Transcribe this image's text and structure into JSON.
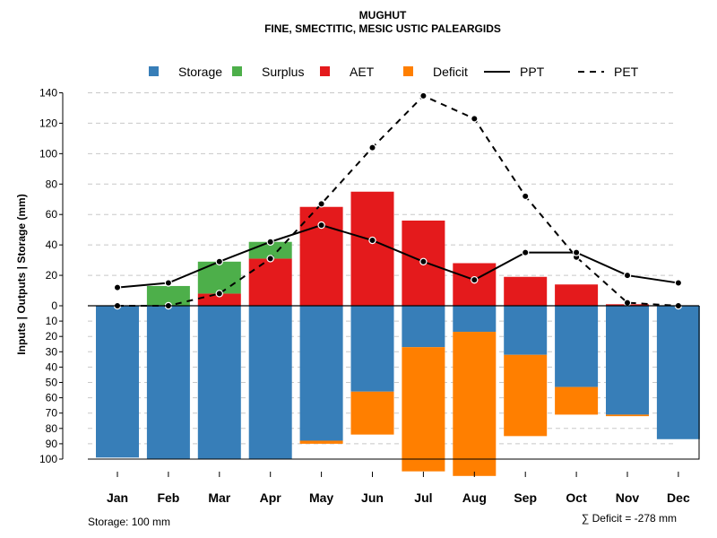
{
  "chart_data": {
    "type": "bar",
    "title": "MUGHUT",
    "subtitle": "FINE, SMECTITIC, MESIC USTIC PALEARGIDS",
    "ylabel": "Inputs | Outputs | Storage    (mm)",
    "categories": [
      "Jan",
      "Feb",
      "Mar",
      "Apr",
      "May",
      "Jun",
      "Jul",
      "Aug",
      "Sep",
      "Oct",
      "Nov",
      "Dec"
    ],
    "yticks_upper": [
      0,
      20,
      40,
      60,
      80,
      100,
      120,
      140
    ],
    "yticks_lower": [
      10,
      20,
      30,
      40,
      50,
      60,
      70,
      80,
      90,
      100
    ],
    "ylim_upper": [
      0,
      140
    ],
    "ylim_lower": [
      0,
      100
    ],
    "grid": true,
    "legend_position": "top",
    "legend": [
      {
        "label": "Storage",
        "kind": "box",
        "color": "#377eb8"
      },
      {
        "label": "Surplus",
        "kind": "box",
        "color": "#4daf4a"
      },
      {
        "label": "AET",
        "kind": "box",
        "color": "#e41a1c"
      },
      {
        "label": "Deficit",
        "kind": "box",
        "color": "#ff7f00"
      },
      {
        "label": "PPT",
        "kind": "solid",
        "color": "#000000"
      },
      {
        "label": "PET",
        "kind": "dashed",
        "color": "#000000"
      }
    ],
    "series": [
      {
        "name": "AET",
        "position": "upper",
        "color": "#e41a1c",
        "values": [
          0,
          0,
          8,
          31,
          65,
          75,
          56,
          28,
          19,
          14,
          1,
          0
        ]
      },
      {
        "name": "Surplus",
        "position": "upper",
        "color": "#4daf4a",
        "values": [
          0,
          13,
          21,
          11,
          0,
          0,
          0,
          0,
          0,
          0,
          0,
          0
        ]
      },
      {
        "name": "Storage",
        "position": "lower",
        "color": "#377eb8",
        "values": [
          99,
          100,
          100,
          100,
          88,
          56,
          27,
          17,
          32,
          53,
          71,
          87
        ]
      },
      {
        "name": "Deficit",
        "position": "lower",
        "color": "#ff7f00",
        "values": [
          0,
          0,
          0,
          0,
          2,
          28,
          81,
          94,
          53,
          18,
          1,
          0
        ]
      },
      {
        "name": "PPT",
        "type": "line",
        "style": "solid",
        "color": "#000000",
        "values": [
          12,
          15,
          29,
          42,
          53,
          43,
          29,
          17,
          35,
          35,
          20,
          15
        ]
      },
      {
        "name": "PET",
        "type": "line",
        "style": "dashed",
        "color": "#000000",
        "values": [
          0,
          0,
          8,
          31,
          67,
          104,
          138,
          123,
          72,
          32,
          2,
          0
        ]
      }
    ],
    "footer_left": "Storage: 100 mm",
    "footer_right": "∑ Deficit = -278 mm"
  }
}
